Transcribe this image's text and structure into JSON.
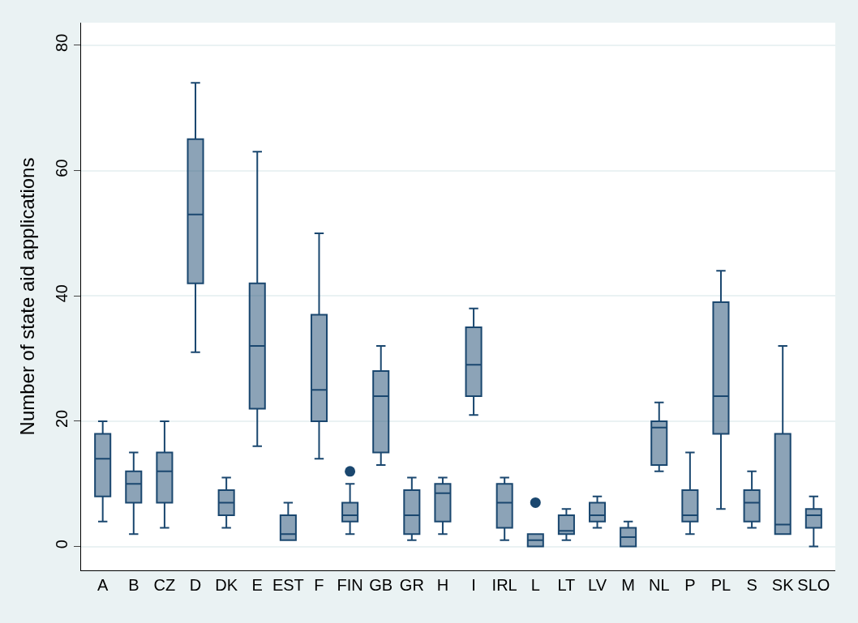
{
  "chart_data": {
    "type": "box",
    "ylabel": "Number of state aid applications",
    "categories": [
      "A",
      "B",
      "CZ",
      "D",
      "DK",
      "E",
      "EST",
      "F",
      "FIN",
      "GB",
      "GR",
      "H",
      "I",
      "IRL",
      "L",
      "LT",
      "LV",
      "M",
      "NL",
      "P",
      "PL",
      "S",
      "SK",
      "SLO"
    ],
    "boxes": [
      {
        "low": 4,
        "q1": 8,
        "median": 14,
        "q3": 18,
        "high": 20
      },
      {
        "low": 2,
        "q1": 7,
        "median": 10,
        "q3": 12,
        "high": 15
      },
      {
        "low": 3,
        "q1": 7,
        "median": 12,
        "q3": 15,
        "high": 20
      },
      {
        "low": 31,
        "q1": 42,
        "median": 53,
        "q3": 65,
        "high": 74
      },
      {
        "low": 3,
        "q1": 5,
        "median": 7,
        "q3": 9,
        "high": 11
      },
      {
        "low": 16,
        "q1": 22,
        "median": 32,
        "q3": 42,
        "high": 63
      },
      {
        "low": 1,
        "q1": 1,
        "median": 2,
        "q3": 5,
        "high": 7
      },
      {
        "low": 14,
        "q1": 20,
        "median": 25,
        "q3": 37,
        "high": 50
      },
      {
        "low": 2,
        "q1": 4,
        "median": 5,
        "q3": 7,
        "high": 10,
        "outliers": [
          12
        ]
      },
      {
        "low": 13,
        "q1": 15,
        "median": 24,
        "q3": 28,
        "high": 32
      },
      {
        "low": 1,
        "q1": 2,
        "median": 5,
        "q3": 9,
        "high": 11
      },
      {
        "low": 2,
        "q1": 4,
        "median": 8.5,
        "q3": 10,
        "high": 11
      },
      {
        "low": 21,
        "q1": 24,
        "median": 29,
        "q3": 35,
        "high": 38
      },
      {
        "low": 1,
        "q1": 3,
        "median": 7,
        "q3": 10,
        "high": 11
      },
      {
        "low": 0,
        "q1": 0,
        "median": 1,
        "q3": 2,
        "high": 2,
        "outliers": [
          7
        ]
      },
      {
        "low": 1,
        "q1": 2,
        "median": 2.5,
        "q3": 5,
        "high": 6
      },
      {
        "low": 3,
        "q1": 4,
        "median": 5,
        "q3": 7,
        "high": 8
      },
      {
        "low": 0,
        "q1": 0,
        "median": 1.5,
        "q3": 3,
        "high": 4
      },
      {
        "low": 12,
        "q1": 13,
        "median": 19,
        "q3": 20,
        "high": 23
      },
      {
        "low": 2,
        "q1": 4,
        "median": 5,
        "q3": 9,
        "high": 15
      },
      {
        "low": 6,
        "q1": 18,
        "median": 24,
        "q3": 39,
        "high": 44
      },
      {
        "low": 3,
        "q1": 4,
        "median": 7,
        "q3": 9,
        "high": 12
      },
      {
        "low": 2,
        "q1": 2,
        "median": 3.5,
        "q3": 18,
        "high": 32
      },
      {
        "low": 0,
        "q1": 3,
        "median": 5,
        "q3": 6,
        "high": 8
      }
    ],
    "color": "#1a476f",
    "ylim": [
      -3.8,
      83.6
    ],
    "yticks": [
      0,
      20,
      40,
      60,
      80
    ],
    "grid": "y"
  }
}
